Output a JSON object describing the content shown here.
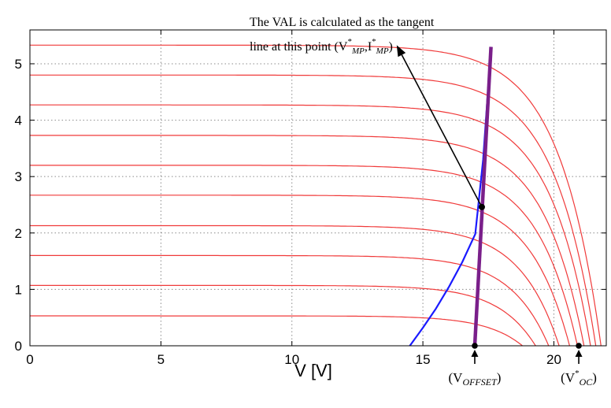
{
  "chart_data": {
    "type": "line",
    "xlabel": "V [V]",
    "ylabel": "",
    "xlim": [
      0,
      22
    ],
    "ylim": [
      0,
      5.6
    ],
    "grid": true,
    "x_ticks": [
      "0",
      "5",
      "10",
      "15",
      "20"
    ],
    "y_ticks": [
      "0",
      "1",
      "2",
      "3",
      "4",
      "5"
    ],
    "iv_curves": {
      "color": "#f03a3a",
      "isc": [
        0.53,
        1.07,
        1.6,
        2.13,
        2.67,
        3.2,
        3.73,
        4.27,
        4.8,
        5.33
      ],
      "voc": [
        18.8,
        19.3,
        19.8,
        20.2,
        20.6,
        20.9,
        21.15,
        21.4,
        21.6,
        21.8
      ]
    },
    "series": [
      {
        "color": "#1a1aff",
        "x": [
          14.5,
          15.0,
          15.5,
          16.0,
          16.5,
          17.0,
          17.3,
          17.6
        ],
        "y": [
          0,
          0.32,
          0.66,
          1.05,
          1.48,
          1.98,
          3.3,
          5.3
        ]
      },
      {
        "color": "#7a1f8a",
        "x": [
          16.98,
          17.6
        ],
        "y": [
          0,
          5.3
        ]
      }
    ],
    "annotation": {
      "line1": "The VAL is calculated as the tangent",
      "line2_prefix": "line at this point (V",
      "line2_sup1": "*",
      "line2_sub1": "MP",
      "line2_mid": ",I",
      "line2_sup2": "*",
      "line2_sub2": "MP",
      "line2_suffix": ")",
      "point": {
        "x": 17.25,
        "y": 2.46
      },
      "arrow_tip": {
        "x": 14.0,
        "y": 5.33
      }
    },
    "markers": [
      {
        "x": 16.98,
        "label": "(V",
        "sup": "",
        "sub": "OFFSET",
        "suffix": ")"
      },
      {
        "x": 20.95,
        "label": "(V",
        "sup": "*",
        "sub": "OC",
        "suffix": ")"
      }
    ]
  }
}
